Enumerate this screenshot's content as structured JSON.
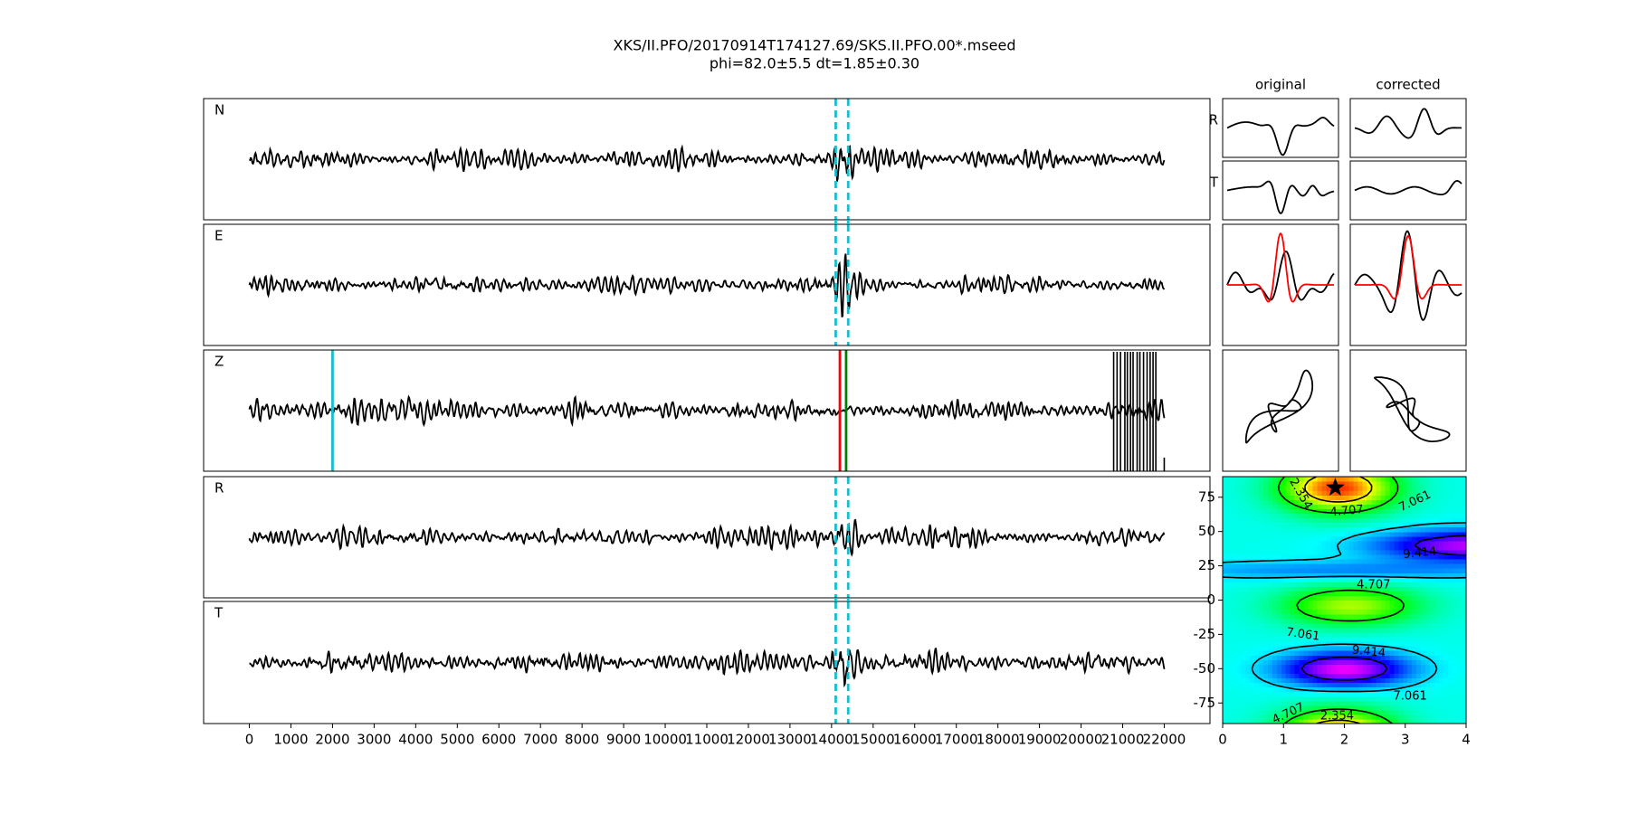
{
  "chart_data": {
    "type": "waveform",
    "title": "XKS/II.PFO/20170914T174127.69/SKS.II.PFO.00*.mseed",
    "subtitle": "phi=82.0±5.5 dt=1.85±0.30",
    "traces": [
      "N",
      "E",
      "Z",
      "R",
      "T"
    ],
    "xlim": [
      -1100,
      23100
    ],
    "xticks": [
      0,
      1000,
      2000,
      3000,
      4000,
      5000,
      6000,
      7000,
      8000,
      9000,
      10000,
      11000,
      12000,
      13000,
      14000,
      15000,
      16000,
      17000,
      18000,
      19000,
      20000,
      21000,
      22000
    ],
    "window": {
      "start": 14100,
      "end": 14400,
      "color": "#17becf"
    },
    "picks": [
      {
        "x": 2000,
        "color": "#17becf"
      },
      {
        "x": 14200,
        "color": "#ff0000"
      },
      {
        "x": 14350,
        "color": "#008000"
      }
    ],
    "panel_titles": [
      "original",
      "corrected"
    ],
    "component_labels": [
      "R",
      "T"
    ],
    "contour": {
      "type": "contour",
      "xlim": [
        0,
        4
      ],
      "xticks": [
        0,
        1,
        2,
        3,
        4
      ],
      "ylim": [
        -90,
        90
      ],
      "yticks": [
        75,
        50,
        25,
        0,
        -25,
        -50,
        -75
      ],
      "levels": [
        2.354,
        4.707,
        7.061,
        9.414
      ],
      "star": {
        "dt": 1.85,
        "phi": 82
      }
    }
  }
}
